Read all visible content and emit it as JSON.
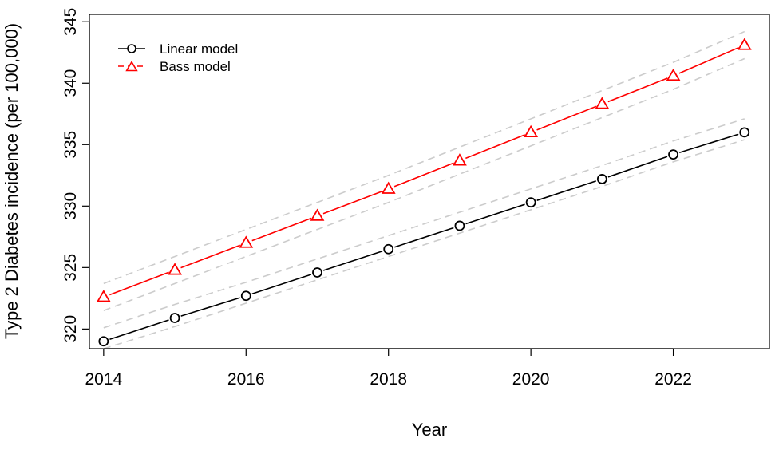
{
  "chart_data": {
    "type": "line",
    "title": "",
    "xlabel": "Year",
    "ylabel": "Type 2 Diabetes incidence (per 100,000)",
    "xlim": [
      2013.8,
      2023.35
    ],
    "ylim": [
      318.4,
      345.6
    ],
    "xticks": [
      2014,
      2016,
      2018,
      2020,
      2022
    ],
    "yticks": [
      320,
      325,
      330,
      335,
      340,
      345
    ],
    "grid": false,
    "legend_position": "top-left",
    "x": [
      2014,
      2015,
      2016,
      2017,
      2018,
      2019,
      2020,
      2021,
      2022,
      2023
    ],
    "series": [
      {
        "name": "Linear model",
        "color": "#000000",
        "marker": "circle",
        "line_style": "solid",
        "values": [
          319.0,
          320.9,
          322.7,
          324.6,
          326.5,
          328.4,
          330.3,
          332.2,
          334.2,
          336.0
        ],
        "band_upper": [
          320.1,
          322.0,
          323.8,
          325.7,
          327.6,
          329.5,
          331.4,
          333.3,
          335.3,
          337.1
        ],
        "band_lower": [
          318.4,
          320.2,
          322.1,
          324.0,
          325.9,
          327.8,
          329.7,
          331.6,
          333.6,
          335.4
        ],
        "band_color": "#cccccc"
      },
      {
        "name": "Bass model",
        "color": "#ff0000",
        "marker": "triangle",
        "line_style": "solid",
        "values": [
          322.6,
          324.8,
          327.0,
          329.2,
          331.4,
          333.7,
          336.0,
          338.3,
          340.6,
          343.1
        ],
        "band_upper": [
          323.7,
          325.9,
          328.1,
          330.3,
          332.5,
          334.8,
          337.1,
          339.4,
          341.7,
          344.2
        ],
        "band_lower": [
          321.5,
          323.7,
          325.9,
          328.1,
          330.3,
          332.6,
          334.9,
          337.2,
          339.5,
          342.0
        ],
        "band_color": "#cccccc"
      }
    ]
  }
}
